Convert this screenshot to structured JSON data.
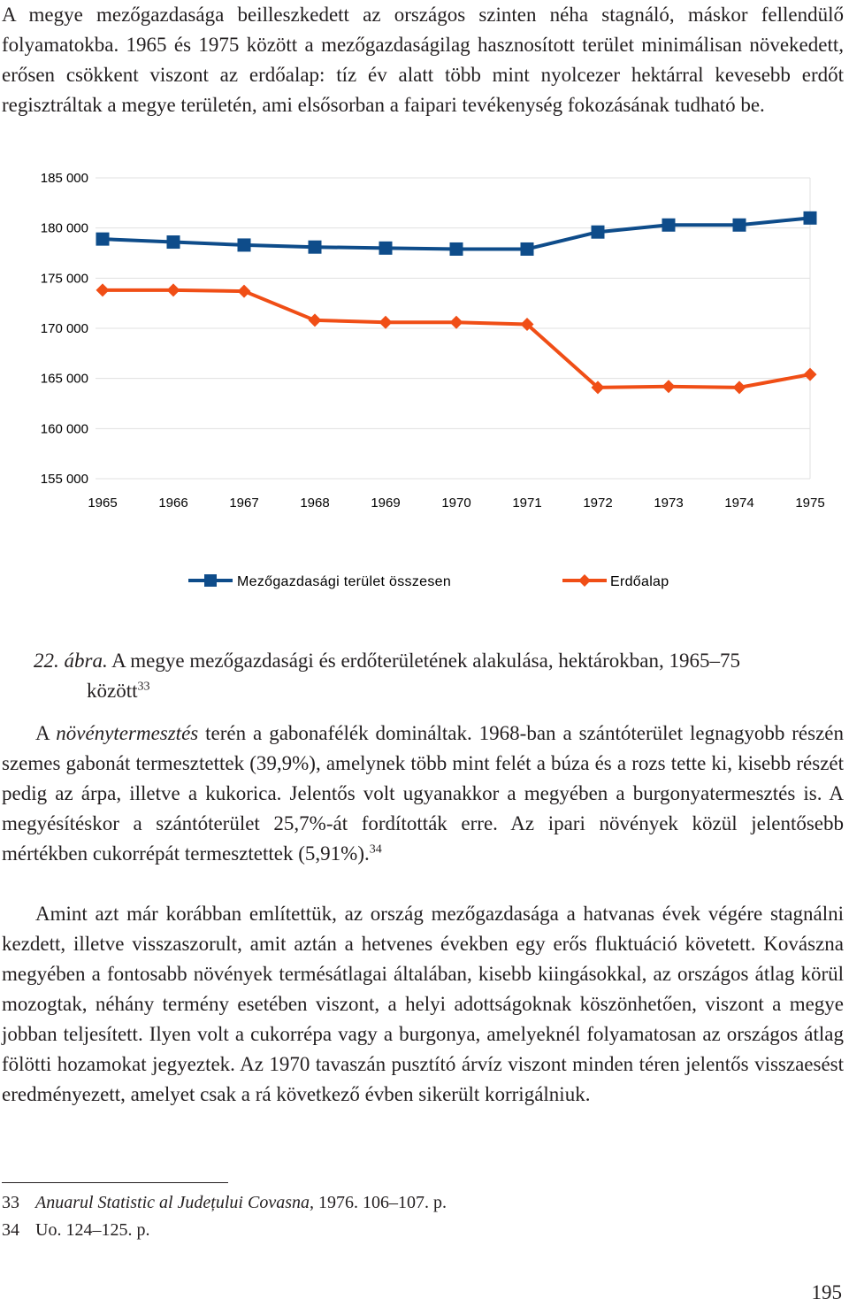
{
  "intro_paragraph": "A megye mezőgazdasága beilleszkedett az országos szinten néha stagnáló, máskor fellendülő folyamatokba. 1965 és 1975 között a mezőgazdaságilag hasznosított terület minimálisan növekedett, erősen csökkent viszont az erdőalap: tíz év alatt több mint nyolcezer hektárral kevesebb erdőt regisztráltak a megye területén, ami elsősorban a faipari tevékenység fokozásának tudható be.",
  "chart_data": {
    "type": "line",
    "x": [
      "1965",
      "1966",
      "1967",
      "1968",
      "1969",
      "1970",
      "1971",
      "1972",
      "1973",
      "1974",
      "1975"
    ],
    "ylim": [
      155000,
      185000
    ],
    "yticks": [
      "185 000",
      "180 000",
      "175 000",
      "170 000",
      "165 000",
      "160 000",
      "155 000"
    ],
    "grid": true,
    "legend_position": "bottom",
    "series": [
      {
        "name": "Mezőgazdasági terület összesen",
        "color": "#0e4c8a",
        "marker": "square",
        "values": [
          178900,
          178600,
          178300,
          178100,
          178000,
          177900,
          177900,
          179600,
          180300,
          180300,
          181000
        ]
      },
      {
        "name": "Erdőalap",
        "color": "#f04e16",
        "marker": "diamond",
        "values": [
          173800,
          173800,
          173700,
          170800,
          170600,
          170600,
          170400,
          164100,
          164200,
          164100,
          165400
        ]
      }
    ]
  },
  "caption": {
    "number": "22. ábra.",
    "text": " A megye mezőgazdasági és erdőterületének alakulása, hektárokban, 1965–75",
    "text2": "között",
    "footnote_ref": "33"
  },
  "paragraph2": {
    "start": "A ",
    "italic": "növénytermesztés",
    "rest": " terén a gabonafélék domináltak. 1968-ban a szántóterület legnagyobb részén szemes gabonát termesztettek (39,9%), amelynek több mint felét a búza és a rozs tette ki, kisebb részét pedig az árpa, illetve a kukorica. Jelentős volt ugyanakkor a megyében a burgonyatermesztés is. A megyésítéskor a szántóterület 25,7%-át fordították erre. Az ipari növények közül jelentősebb mértékben cukorrépát termesztettek (5,91%).",
    "footnote_ref": "34"
  },
  "paragraph3": "Amint azt már korábban említettük, az ország mezőgazdasága a hatvanas évek végére stagnálni kezdett, illetve visszaszorult, amit aztán a hetvenes években egy erős fluktuáció követett. Kovászna megyében a fontosabb növények termésátlagai általában, kisebb kiingásokkal, az országos átlag körül mozogtak, néhány termény esetében viszont, a helyi adottságoknak köszönhetően, viszont a megye jobban teljesített. Ilyen volt a cukorrépa vagy a burgonya, amelyeknél folyamatosan az országos átlag fölötti hozamokat jegyeztek. Az 1970 tavaszán pusztító árvíz viszont minden téren jelentős visszaesést eredményezett, amelyet csak a rá következő évben sikerült korrigálniuk.",
  "footnotes": [
    {
      "num": "33",
      "italic": "Anuarul Statistic al Județului Covasna,",
      "rest": " 1976. 106–107. p."
    },
    {
      "num": "34",
      "italic": "",
      "rest": "Uo. 124–125. p."
    }
  ],
  "page_number": "195"
}
